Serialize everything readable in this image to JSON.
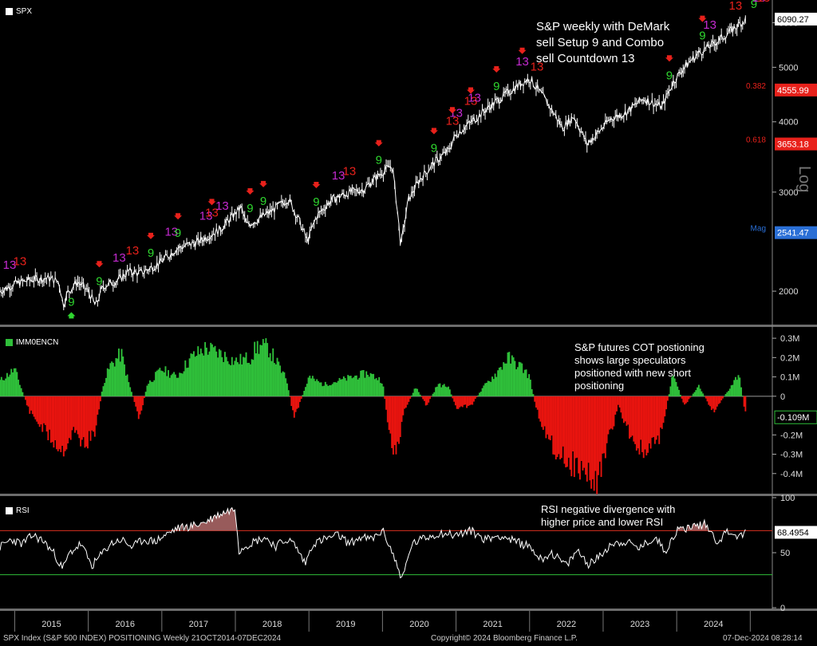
{
  "chart_data": [
    {
      "type": "line",
      "panel": "price",
      "legend": "SPX",
      "legend_color": "#ffffff",
      "scale": "log",
      "ylim": [
        1750,
        6500
      ],
      "yticks": [
        2000,
        3000,
        4000,
        5000,
        6000
      ],
      "ylabel": "Log",
      "annotation": "S&P weekly with DeMark sell Setup 9 and Combo sell Countdown 13",
      "annotation_lines": [
        "S&P weekly with DeMark",
        "sell Setup 9 and Combo",
        "sell Countdown 13"
      ],
      "price_tags": [
        {
          "label": "6090.27",
          "value": 6090.27,
          "bg": "#ffffff",
          "fg": "#000000"
        },
        {
          "label": "4555.99",
          "value": 4555.99,
          "bg": "#e8211b",
          "fg": "#ffffff"
        },
        {
          "label": "3653.18",
          "value": 3653.18,
          "bg": "#e8211b",
          "fg": "#ffffff"
        },
        {
          "label": "2541.47",
          "value": 2541.47,
          "bg": "#2a6fd6",
          "fg": "#ffffff"
        }
      ],
      "level_labels": [
        {
          "label": "0.382",
          "value": 4555.99,
          "color": "#e8211b"
        },
        {
          "label": "0.618",
          "value": 3653.18,
          "color": "#e8211b"
        },
        {
          "label": "Mag",
          "value": 2541.47,
          "color": "#2a6fd6"
        }
      ],
      "series": [
        {
          "name": "SPX",
          "color": "#ffffff",
          "x": [
            2014.8,
            2015.0,
            2015.25,
            2015.45,
            2015.6,
            2015.66,
            2015.72,
            2015.85,
            2016.0,
            2016.1,
            2016.2,
            2016.4,
            2016.55,
            2016.7,
            2016.85,
            2017.0,
            2017.2,
            2017.5,
            2017.8,
            2018.0,
            2018.08,
            2018.15,
            2018.3,
            2018.5,
            2018.72,
            2018.85,
            2018.98,
            2019.1,
            2019.3,
            2019.5,
            2019.75,
            2020.0,
            2020.13,
            2020.2,
            2020.25,
            2020.35,
            2020.5,
            2020.7,
            2020.9,
            2021.0,
            2021.2,
            2021.4,
            2021.6,
            2021.85,
            2022.0,
            2022.2,
            2022.45,
            2022.6,
            2022.78,
            2022.95,
            2023.1,
            2023.3,
            2023.55,
            2023.8,
            2023.95,
            2024.1,
            2024.3,
            2024.5,
            2024.7,
            2024.94
          ],
          "values": [
            2000,
            2060,
            2100,
            2110,
            2080,
            1890,
            1990,
            2080,
            2000,
            1880,
            2040,
            2090,
            2170,
            2150,
            2200,
            2260,
            2380,
            2450,
            2580,
            2750,
            2820,
            2620,
            2680,
            2780,
            2920,
            2700,
            2450,
            2710,
            2900,
            2980,
            3040,
            3260,
            3350,
            2800,
            2400,
            2900,
            3150,
            3380,
            3560,
            3800,
            3990,
            4200,
            4400,
            4650,
            4780,
            4400,
            3900,
            4100,
            3650,
            3850,
            4050,
            4150,
            4400,
            4250,
            4700,
            5000,
            5300,
            5500,
            5750,
            6090
          ]
        }
      ],
      "demark": [
        {
          "x": 2014.93,
          "label": "13",
          "color": "#c42ad0"
        },
        {
          "x": 2015.07,
          "label": "13",
          "color": "#e8211b"
        },
        {
          "x": 2015.77,
          "label": "9",
          "color": "#2fd62f"
        },
        {
          "x": 2016.15,
          "label": "9",
          "color": "#2fd62f"
        },
        {
          "x": 2016.42,
          "label": "13",
          "color": "#c42ad0"
        },
        {
          "x": 2016.6,
          "label": "13",
          "color": "#e8211b"
        },
        {
          "x": 2016.85,
          "label": "9",
          "color": "#2fd62f"
        },
        {
          "x": 2017.13,
          "label": "13",
          "color": "#c42ad0"
        },
        {
          "x": 2017.22,
          "label": "9",
          "color": "#2fd62f"
        },
        {
          "x": 2017.6,
          "label": "13",
          "color": "#c42ad0"
        },
        {
          "x": 2017.68,
          "label": "13",
          "color": "#e8211b"
        },
        {
          "x": 2017.82,
          "label": "13",
          "color": "#c42ad0"
        },
        {
          "x": 2018.2,
          "label": "9",
          "color": "#2fd62f"
        },
        {
          "x": 2018.38,
          "label": "9",
          "color": "#2fd62f"
        },
        {
          "x": 2019.1,
          "label": "9",
          "color": "#2fd62f"
        },
        {
          "x": 2019.4,
          "label": "13",
          "color": "#c42ad0"
        },
        {
          "x": 2019.55,
          "label": "13",
          "color": "#e8211b"
        },
        {
          "x": 2019.95,
          "label": "9",
          "color": "#2fd62f"
        },
        {
          "x": 2020.7,
          "label": "9",
          "color": "#2fd62f"
        },
        {
          "x": 2020.95,
          "label": "13",
          "color": "#e8211b"
        },
        {
          "x": 2021.0,
          "label": "13",
          "color": "#c42ad0"
        },
        {
          "x": 2021.2,
          "label": "13",
          "color": "#e8211b"
        },
        {
          "x": 2021.25,
          "label": "13",
          "color": "#c42ad0"
        },
        {
          "x": 2021.55,
          "label": "9",
          "color": "#2fd62f"
        },
        {
          "x": 2021.9,
          "label": "13",
          "color": "#c42ad0"
        },
        {
          "x": 2022.1,
          "label": "13",
          "color": "#e8211b"
        },
        {
          "x": 2023.9,
          "label": "9",
          "color": "#2fd62f"
        },
        {
          "x": 2024.35,
          "label": "9",
          "color": "#2fd62f"
        },
        {
          "x": 2024.45,
          "label": "13",
          "color": "#c42ad0"
        },
        {
          "x": 2024.8,
          "label": "13",
          "color": "#e8211b"
        },
        {
          "x": 2025.05,
          "label": "9",
          "color": "#2fd62f"
        },
        {
          "x": 2025.12,
          "label": "13",
          "color": "#c42ad0"
        },
        {
          "x": 2025.18,
          "label": "13",
          "color": "#e8211b"
        }
      ],
      "arrows_down_x": [
        2016.15,
        2016.85,
        2017.22,
        2017.68,
        2018.2,
        2018.38,
        2019.1,
        2019.95,
        2020.7,
        2020.95,
        2021.2,
        2021.55,
        2021.9,
        2023.9,
        2024.35,
        2025.05,
        2025.12
      ],
      "arrow_up_x": [
        2015.77
      ]
    },
    {
      "type": "bar",
      "panel": "cot",
      "legend": "IMM0ENCN",
      "legend_color": "#2fbf3a",
      "ylim": [
        -0.5,
        0.35
      ],
      "yticks": [
        0.3,
        0.2,
        0.1,
        0,
        -0.2,
        -0.3,
        -0.4
      ],
      "ytick_labels": [
        "0.3M",
        "0.2M",
        "0.1M",
        "0",
        "-0.2M",
        "-0.3M",
        "-0.4M"
      ],
      "annotation": "S&P futures COT postioning shows large speculators positioned with new short positioning",
      "annotation_lines": [
        "S&P futures COT postioning",
        "shows large speculators",
        "positioned with new short",
        "positioning"
      ],
      "last_tag": {
        "label": "-0.109M",
        "value": -0.109,
        "bg": "#000000",
        "fg": "#ffffff",
        "border": "#2fbf3a"
      },
      "positive_color": "#2fbf3a",
      "negative_color": "#e8140f",
      "x": [
        2014.8,
        2015.0,
        2015.2,
        2015.35,
        2015.5,
        2015.65,
        2015.8,
        2015.95,
        2016.1,
        2016.2,
        2016.3,
        2016.45,
        2016.55,
        2016.7,
        2016.8,
        2016.95,
        2017.0,
        2017.2,
        2017.4,
        2017.6,
        2017.8,
        2018.0,
        2018.2,
        2018.3,
        2018.45,
        2018.6,
        2018.7,
        2018.8,
        2019.0,
        2019.2,
        2019.4,
        2019.6,
        2019.8,
        2020.0,
        2020.1,
        2020.2,
        2020.3,
        2020.45,
        2020.6,
        2020.75,
        2020.9,
        2021.0,
        2021.2,
        2021.4,
        2021.55,
        2021.7,
        2021.9,
        2022.0,
        2022.1,
        2022.3,
        2022.5,
        2022.7,
        2022.9,
        2023.1,
        2023.2,
        2023.4,
        2023.55,
        2023.7,
        2023.8,
        2023.95,
        2024.1,
        2024.3,
        2024.5,
        2024.7,
        2024.85,
        2024.94
      ],
      "values": [
        0.08,
        0.14,
        -0.08,
        -0.15,
        -0.22,
        -0.28,
        -0.18,
        -0.25,
        -0.18,
        0.06,
        0.16,
        0.22,
        0.07,
        -0.12,
        0.06,
        0.12,
        0.14,
        0.1,
        0.2,
        0.25,
        0.22,
        0.18,
        0.2,
        0.26,
        0.25,
        0.15,
        0.08,
        -0.12,
        0.1,
        0.06,
        0.08,
        0.1,
        0.12,
        0.08,
        -0.22,
        -0.3,
        -0.08,
        0.05,
        -0.05,
        0.06,
        0.05,
        -0.06,
        -0.05,
        0.06,
        0.12,
        0.2,
        0.15,
        0.1,
        -0.08,
        -0.25,
        -0.33,
        -0.38,
        -0.45,
        -0.2,
        -0.05,
        -0.22,
        -0.3,
        -0.25,
        -0.18,
        0.12,
        -0.05,
        0.05,
        -0.08,
        0.03,
        0.12,
        -0.109
      ]
    },
    {
      "type": "line",
      "panel": "rsi",
      "legend": "RSI",
      "legend_color": "#ffffff",
      "ylim": [
        0,
        100
      ],
      "yticks": [
        0,
        50,
        100
      ],
      "overbought": 70,
      "oversold": 30,
      "overbought_color": "#d9301f",
      "oversold_color": "#2fbf3a",
      "annotation": "RSI negative divergence with higher price and lower RSI",
      "annotation_lines": [
        "RSI negative divergence with",
        "higher price and lower RSI"
      ],
      "last_tag": {
        "label": "68.4954",
        "value": 68.4954,
        "bg": "#ffffff",
        "fg": "#000000"
      },
      "series": [
        {
          "name": "RSI",
          "color": "#ffffff",
          "x": [
            2014.8,
            2014.95,
            2015.1,
            2015.25,
            2015.4,
            2015.55,
            2015.65,
            2015.75,
            2015.9,
            2016.05,
            2016.15,
            2016.3,
            2016.45,
            2016.6,
            2016.75,
            2016.9,
            2017.05,
            2017.2,
            2017.4,
            2017.6,
            2017.75,
            2017.9,
            2018.0,
            2018.05,
            2018.12,
            2018.25,
            2018.4,
            2018.55,
            2018.7,
            2018.8,
            2018.95,
            2019.05,
            2019.2,
            2019.4,
            2019.55,
            2019.7,
            2019.85,
            2020.0,
            2020.1,
            2020.2,
            2020.27,
            2020.4,
            2020.6,
            2020.8,
            2021.0,
            2021.2,
            2021.4,
            2021.6,
            2021.8,
            2022.0,
            2022.15,
            2022.3,
            2022.5,
            2022.65,
            2022.8,
            2022.95,
            2023.1,
            2023.3,
            2023.5,
            2023.7,
            2023.85,
            2024.0,
            2024.2,
            2024.4,
            2024.55,
            2024.7,
            2024.85,
            2024.94
          ],
          "values": [
            55,
            62,
            58,
            66,
            60,
            48,
            35,
            50,
            58,
            38,
            46,
            58,
            62,
            55,
            62,
            60,
            66,
            72,
            74,
            78,
            84,
            88,
            90,
            52,
            56,
            60,
            64,
            56,
            62,
            58,
            40,
            58,
            62,
            66,
            58,
            64,
            62,
            70,
            56,
            38,
            26,
            58,
            64,
            68,
            66,
            70,
            62,
            66,
            60,
            56,
            44,
            50,
            38,
            52,
            40,
            46,
            58,
            60,
            54,
            64,
            52,
            70,
            74,
            76,
            60,
            70,
            64,
            68.4954
          ]
        }
      ]
    }
  ],
  "x_axis": {
    "year_labels": [
      "2015",
      "2016",
      "2017",
      "2018",
      "2019",
      "2020",
      "2021",
      "2022",
      "2023",
      "2024"
    ],
    "x_range": [
      2014.8,
      2025.3
    ]
  },
  "footer": {
    "left": "SPX Index (S&P 500 INDEX) POSITIONING  Weekly 21OCT2014-07DEC2024",
    "center": "Copyright© 2024 Bloomberg Finance L.P.",
    "right": "07-Dec-2024 08:28:14"
  }
}
